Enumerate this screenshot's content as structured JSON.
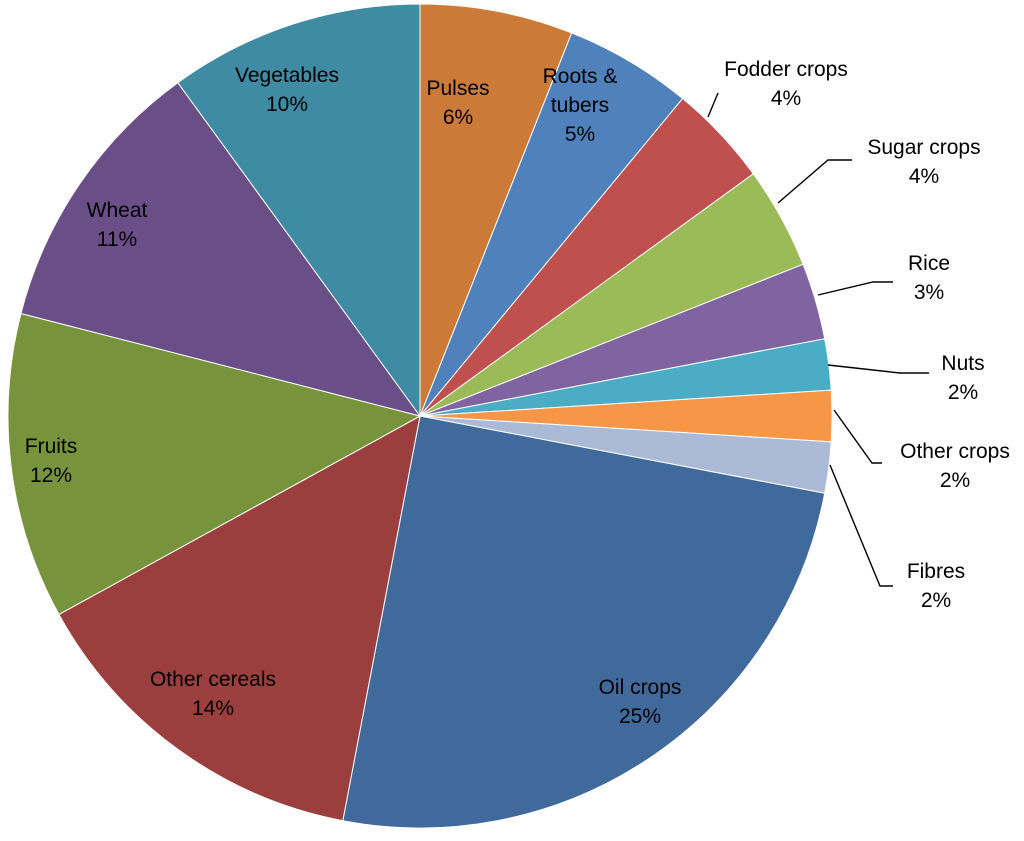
{
  "chart_data": {
    "type": "pie",
    "title": "",
    "start": "12 o'clock",
    "direction": "clockwise",
    "legend": "none",
    "slices": [
      {
        "label": "Pulses",
        "value": 6,
        "display": "6%",
        "color": "#cc7a38"
      },
      {
        "label": "Roots &\ntubers",
        "value": 5,
        "display": "5%",
        "color": "#4f81bd"
      },
      {
        "label": "Fodder crops",
        "value": 4,
        "display": "4%",
        "color": "#c0504d"
      },
      {
        "label": "Sugar crops",
        "value": 4,
        "display": "4%",
        "color": "#9bbb59"
      },
      {
        "label": "Rice",
        "value": 3,
        "display": "3%",
        "color": "#8064a2"
      },
      {
        "label": "Nuts",
        "value": 2,
        "display": "2%",
        "color": "#4bacc6"
      },
      {
        "label": "Other crops",
        "value": 2,
        "display": "2%",
        "color": "#f79646"
      },
      {
        "label": "Fibres",
        "value": 2,
        "display": "2%",
        "color": "#aabad7"
      },
      {
        "label": "Oil crops",
        "value": 25,
        "display": "25%",
        "color": "#416a9c"
      },
      {
        "label": "Other cereals",
        "value": 14,
        "display": "14%",
        "color": "#9a3f3d"
      },
      {
        "label": "Fruits",
        "value": 12,
        "display": "12%",
        "color": "#77933c"
      },
      {
        "label": "Wheat",
        "value": 11,
        "display": "11%",
        "color": "#6a4e87"
      },
      {
        "label": "Vegetables",
        "value": 10,
        "display": "10%",
        "color": "#3e8ba3"
      }
    ]
  }
}
